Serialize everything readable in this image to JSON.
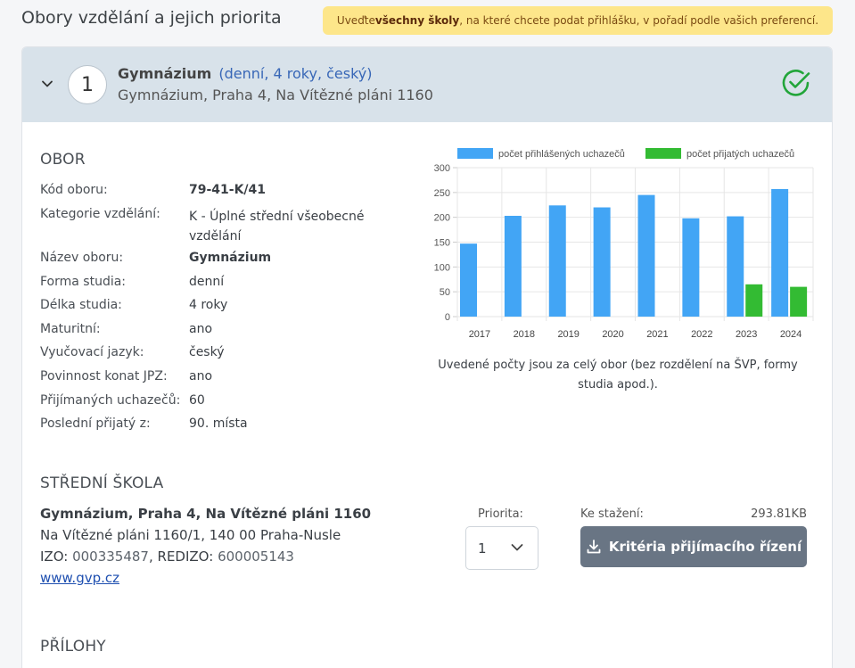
{
  "page": {
    "title": "Obory vzdělání a jejich priorita",
    "notice": {
      "pre": "Uveďte ",
      "bold": "všechny školy",
      "post": ", na které chcete podat přihlášku, v pořadí podle vašich preferencí."
    }
  },
  "card": {
    "number": "1",
    "name": "Gymnázium",
    "meta": "(denní, 4 roky, český)",
    "subtitle": "Gymnázium, Praha 4, Na Vítězné pláni 1160",
    "icons": {
      "expand": "chevron-down-icon",
      "status": "check-circle-icon"
    },
    "status_color": "#22a53a"
  },
  "obor": {
    "heading": "OBOR",
    "fields": [
      {
        "label": "Kód oboru:",
        "value": "79-41-K/41"
      },
      {
        "label": "Kategorie vzdělání:",
        "value": "K - Úplné střední všeobecné vzdělání"
      },
      {
        "label": "Název oboru:",
        "value": "Gymnázium"
      },
      {
        "label": "Forma studia:",
        "value": "denní"
      },
      {
        "label": "Délka studia:",
        "value": "4 roky"
      },
      {
        "label": "Maturitní:",
        "value": "ano"
      },
      {
        "label": "Vyučovací jazyk:",
        "value": "český"
      },
      {
        "label": "Povinnost konat JPZ:",
        "value": "ano"
      },
      {
        "label": "Přijímaných uchazečů:",
        "value": "60"
      },
      {
        "label": "Poslední přijatý z:",
        "value": "90. místa"
      }
    ]
  },
  "chart_data": {
    "type": "bar",
    "categories": [
      "2017",
      "2018",
      "2019",
      "2020",
      "2021",
      "2022",
      "2023",
      "2024"
    ],
    "series": [
      {
        "name": "počet přihlášených uchazečů",
        "color": "#42a5f5",
        "values": [
          147,
          203,
          224,
          220,
          245,
          198,
          202,
          257
        ]
      },
      {
        "name": "počet přijatých uchazečů",
        "color": "#33bb33",
        "values": [
          null,
          null,
          null,
          null,
          null,
          null,
          65,
          60
        ]
      }
    ],
    "yticks": [
      0,
      50,
      100,
      150,
      200,
      250,
      300
    ],
    "ylim": [
      0,
      300
    ],
    "grid": true,
    "legend": "top",
    "note": "Uvedené počty jsou za celý obor (bez rozdělení na ŠVP, formy studia apod.)."
  },
  "skola": {
    "heading": "STŘEDNÍ ŠKOLA",
    "name": "Gymnázium, Praha 4, Na Vítězné pláni 1160",
    "address": "Na Vítězné pláni 1160/1, 140 00 Praha-Nusle",
    "izo_label": "IZO:",
    "izo": "000335487",
    "redizo_label": "REDIZO:",
    "redizo": "600005143",
    "web": "www.gvp.cz",
    "priority_label": "Priorita:",
    "priority_value": "1",
    "download_label": "Ke stažení:",
    "download_size": "293.81KB",
    "download_button": "Kritéria přijímacího řízení",
    "download_icon": "download-icon"
  },
  "prilohy": {
    "heading": "PŘÍLOHY"
  }
}
